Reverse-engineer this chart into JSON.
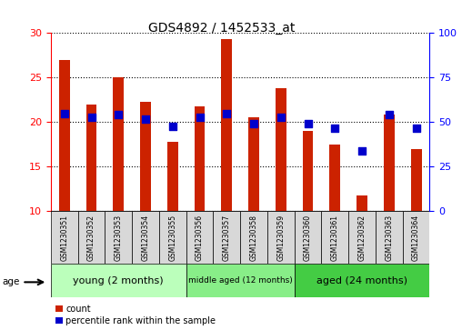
{
  "title": "GDS4892 / 1452533_at",
  "samples": [
    "GSM1230351",
    "GSM1230352",
    "GSM1230353",
    "GSM1230354",
    "GSM1230355",
    "GSM1230356",
    "GSM1230357",
    "GSM1230358",
    "GSM1230359",
    "GSM1230360",
    "GSM1230361",
    "GSM1230362",
    "GSM1230363",
    "GSM1230364"
  ],
  "counts": [
    27.0,
    22.0,
    25.0,
    22.3,
    17.8,
    21.8,
    29.3,
    20.5,
    23.8,
    19.0,
    17.5,
    11.8,
    20.8,
    17.0
  ],
  "percentiles": [
    21.0,
    20.5,
    20.8,
    20.3,
    19.5,
    20.5,
    21.0,
    19.8,
    20.5,
    19.8,
    19.3,
    16.8,
    20.8,
    19.3
  ],
  "ymin": 10,
  "ymax": 30,
  "yticks_left": [
    10,
    15,
    20,
    25,
    30
  ],
  "yticks_right": [
    0,
    25,
    50,
    75,
    100
  ],
  "bar_color": "#cc2200",
  "dot_color": "#0000cc",
  "group_labels": [
    "young (2 months)",
    "middle aged (12 months)",
    "aged (24 months)"
  ],
  "group_colors_list": [
    "#bbffbb",
    "#88ee88",
    "#44cc44"
  ],
  "group_ranges": [
    [
      0,
      5
    ],
    [
      5,
      9
    ],
    [
      9,
      14
    ]
  ],
  "group_fontsizes": [
    8,
    6.5,
    8
  ],
  "age_label": "age",
  "legend_count_label": "count",
  "legend_percentile_label": "percentile rank within the sample",
  "bar_width": 0.4,
  "dot_size": 38
}
